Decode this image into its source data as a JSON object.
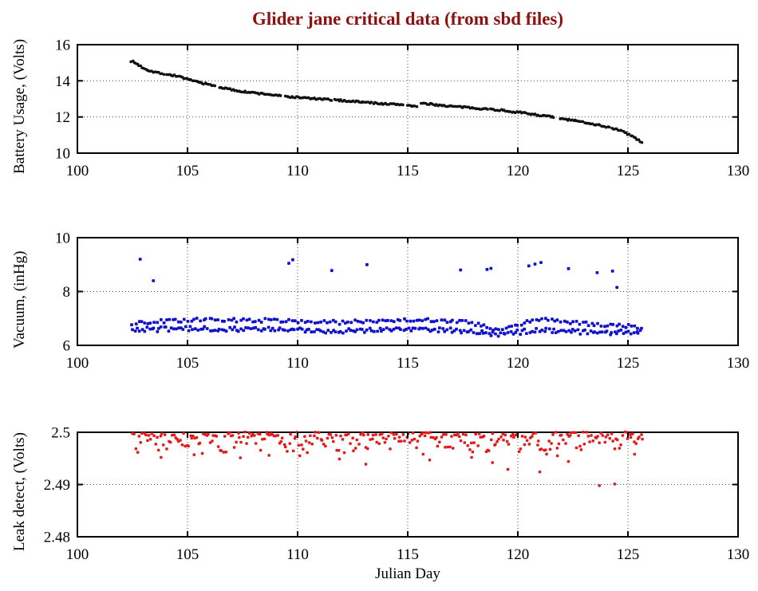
{
  "title": "Glider jane critical data (from sbd files)",
  "title_color": "#8b1210",
  "xlabel": "Julian Day",
  "seed": 7,
  "chart_data": [
    {
      "type": "scatter",
      "name": "battery",
      "ylabel": "Battery Usage, (Volts)",
      "color": "#111111",
      "marker_size": 3.4,
      "xlim": [
        100,
        130
      ],
      "ylim": [
        10,
        16
      ],
      "xticks": [
        100,
        105,
        110,
        115,
        120,
        125,
        130
      ],
      "xtick_labels": [
        "100",
        "105",
        "110",
        "115",
        "120",
        "125",
        "130"
      ],
      "yticks": [
        10,
        12,
        14,
        16
      ],
      "ytick_labels": [
        "10",
        "12",
        "14",
        "16"
      ],
      "grid": "dotted",
      "bands": [
        {
          "x_start": 102.45,
          "x_end": 125.65,
          "dx": 0.07,
          "noise": 0.045,
          "x_jitter": 0.02,
          "gaps": [
            [
              103.92,
              104.05
            ],
            [
              106.25,
              106.38
            ],
            [
              109.25,
              109.38
            ],
            [
              111.55,
              111.68
            ],
            [
              114.78,
              114.95
            ],
            [
              115.44,
              115.58
            ],
            [
              118.62,
              118.72
            ],
            [
              121.68,
              121.84
            ],
            [
              124.18,
              124.28
            ]
          ],
          "anchors": [
            [
              102.45,
              15.1
            ],
            [
              102.6,
              15.0
            ],
            [
              102.75,
              14.9
            ],
            [
              102.95,
              14.74
            ],
            [
              103.15,
              14.62
            ],
            [
              103.45,
              14.5
            ],
            [
              103.75,
              14.43
            ],
            [
              104.05,
              14.36
            ],
            [
              104.35,
              14.3
            ],
            [
              104.65,
              14.24
            ],
            [
              105.0,
              14.07
            ],
            [
              105.4,
              13.96
            ],
            [
              105.8,
              13.84
            ],
            [
              106.2,
              13.72
            ],
            [
              106.6,
              13.61
            ],
            [
              107.0,
              13.51
            ],
            [
              107.4,
              13.43
            ],
            [
              107.8,
              13.36
            ],
            [
              108.2,
              13.31
            ],
            [
              108.6,
              13.26
            ],
            [
              109.0,
              13.2
            ],
            [
              109.4,
              13.14
            ],
            [
              109.8,
              13.1
            ],
            [
              110.2,
              13.07
            ],
            [
              110.6,
              13.03
            ],
            [
              111.0,
              12.99
            ],
            [
              111.4,
              12.96
            ],
            [
              111.8,
              12.93
            ],
            [
              112.2,
              12.89
            ],
            [
              112.6,
              12.86
            ],
            [
              113.0,
              12.82
            ],
            [
              113.4,
              12.78
            ],
            [
              113.8,
              12.74
            ],
            [
              114.2,
              12.71
            ],
            [
              114.6,
              12.69
            ],
            [
              115.0,
              12.66
            ],
            [
              115.4,
              12.58
            ],
            [
              115.62,
              12.74
            ],
            [
              116.0,
              12.71
            ],
            [
              116.4,
              12.66
            ],
            [
              116.8,
              12.61
            ],
            [
              117.2,
              12.57
            ],
            [
              117.6,
              12.53
            ],
            [
              118.0,
              12.5
            ],
            [
              118.4,
              12.46
            ],
            [
              118.8,
              12.42
            ],
            [
              119.2,
              12.38
            ],
            [
              119.6,
              12.32
            ],
            [
              120.0,
              12.26
            ],
            [
              120.4,
              12.2
            ],
            [
              120.8,
              12.13
            ],
            [
              121.2,
              12.06
            ],
            [
              121.6,
              11.99
            ],
            [
              121.9,
              11.9
            ],
            [
              122.2,
              11.86
            ],
            [
              122.6,
              11.79
            ],
            [
              123.0,
              11.71
            ],
            [
              123.4,
              11.62
            ],
            [
              123.8,
              11.52
            ],
            [
              124.2,
              11.41
            ],
            [
              124.6,
              11.28
            ],
            [
              125.0,
              11.06
            ],
            [
              125.3,
              10.86
            ],
            [
              125.65,
              10.55
            ]
          ]
        }
      ],
      "outliers": []
    },
    {
      "type": "scatter",
      "name": "vacuum",
      "ylabel": "Vacuum, (inHg)",
      "color": "#1212cd",
      "marker_size": 3.8,
      "xlim": [
        100,
        130
      ],
      "ylim": [
        6,
        10
      ],
      "xticks": [
        100,
        105,
        110,
        115,
        120,
        125,
        130
      ],
      "xtick_labels": [
        "100",
        "105",
        "110",
        "115",
        "120",
        "125",
        "130"
      ],
      "yticks": [
        6,
        8,
        10
      ],
      "ytick_labels": [
        "6",
        "8",
        "10"
      ],
      "grid": "dotted",
      "bands": [
        {
          "x_start": 102.5,
          "x_end": 125.7,
          "dx": 0.14,
          "noise": 0.07,
          "x_jitter": 0.04,
          "anchors": [
            [
              102.5,
              6.82
            ],
            [
              103.5,
              6.88
            ],
            [
              104.5,
              6.92
            ],
            [
              106.0,
              6.95
            ],
            [
              108.0,
              6.93
            ],
            [
              109.5,
              6.92
            ],
            [
              110.5,
              6.88
            ],
            [
              112.0,
              6.85
            ],
            [
              113.5,
              6.92
            ],
            [
              115.0,
              6.95
            ],
            [
              116.5,
              6.93
            ],
            [
              117.5,
              6.88
            ],
            [
              118.3,
              6.75
            ],
            [
              119.0,
              6.55
            ],
            [
              119.8,
              6.7
            ],
            [
              120.8,
              6.95
            ],
            [
              121.3,
              7.0
            ],
            [
              122.0,
              6.88
            ],
            [
              123.0,
              6.8
            ],
            [
              124.0,
              6.75
            ],
            [
              125.0,
              6.72
            ],
            [
              125.7,
              6.65
            ]
          ]
        },
        {
          "x_start": 102.5,
          "x_end": 125.7,
          "dx": 0.11,
          "noise": 0.09,
          "x_jitter": 0.04,
          "anchors": [
            [
              102.5,
              6.58
            ],
            [
              104.0,
              6.6
            ],
            [
              106.0,
              6.62
            ],
            [
              108.0,
              6.6
            ],
            [
              110.0,
              6.56
            ],
            [
              112.0,
              6.54
            ],
            [
              114.0,
              6.6
            ],
            [
              116.0,
              6.6
            ],
            [
              117.5,
              6.55
            ],
            [
              118.5,
              6.45
            ],
            [
              119.2,
              6.4
            ],
            [
              120.0,
              6.48
            ],
            [
              121.0,
              6.58
            ],
            [
              122.0,
              6.55
            ],
            [
              123.0,
              6.5
            ],
            [
              124.0,
              6.48
            ],
            [
              125.7,
              6.5
            ]
          ]
        }
      ],
      "outliers": [
        [
          102.85,
          9.2
        ],
        [
          103.45,
          8.4
        ],
        [
          109.6,
          9.05
        ],
        [
          109.78,
          9.18
        ],
        [
          111.55,
          8.78
        ],
        [
          113.15,
          9.0
        ],
        [
          117.4,
          8.8
        ],
        [
          118.6,
          8.82
        ],
        [
          118.78,
          8.86
        ],
        [
          120.5,
          8.95
        ],
        [
          120.78,
          9.02
        ],
        [
          121.05,
          9.08
        ],
        [
          122.3,
          8.85
        ],
        [
          123.6,
          8.7
        ],
        [
          124.3,
          8.76
        ],
        [
          124.5,
          8.15
        ]
      ]
    },
    {
      "type": "scatter",
      "name": "leak",
      "ylabel": "Leak detect, (Volts)",
      "color": "#e31b1b",
      "marker_size": 3.5,
      "xlim": [
        100,
        130
      ],
      "ylim": [
        2.48,
        2.5
      ],
      "xticks": [
        100,
        105,
        110,
        115,
        120,
        125,
        130
      ],
      "xtick_labels": [
        "100",
        "105",
        "110",
        "115",
        "120",
        "125",
        "130"
      ],
      "yticks": [
        2.48,
        2.49,
        2.5
      ],
      "ytick_labels": [
        "2.48",
        "2.49",
        "2.5"
      ],
      "grid": "dotted",
      "bands": [
        {
          "x_start": 102.5,
          "x_end": 125.75,
          "dx": 0.075,
          "noise": 0.0004,
          "x_jitter": 0.03,
          "base": 2.4997,
          "skew": 2.2,
          "spread": 0.0036
        }
      ],
      "outliers": [
        [
          103.8,
          2.4952
        ],
        [
          105.3,
          2.4957
        ],
        [
          107.4,
          2.4951
        ],
        [
          108.7,
          2.4956
        ],
        [
          110.1,
          2.4955
        ],
        [
          111.9,
          2.4949
        ],
        [
          113.1,
          2.4939
        ],
        [
          115.7,
          2.4958
        ],
        [
          116.0,
          2.4947
        ],
        [
          117.9,
          2.4952
        ],
        [
          118.85,
          2.4942
        ],
        [
          119.55,
          2.4929
        ],
        [
          121.0,
          2.4924
        ],
        [
          121.8,
          2.4955
        ],
        [
          122.3,
          2.4944
        ],
        [
          123.7,
          2.4898
        ],
        [
          124.4,
          2.4901
        ],
        [
          125.3,
          2.4958
        ]
      ]
    }
  ]
}
